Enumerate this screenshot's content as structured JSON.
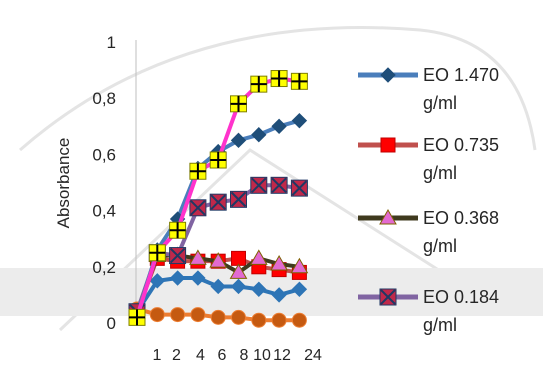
{
  "chart_data": {
    "type": "line",
    "title": "",
    "xlabel": "",
    "ylabel": "Absorbance",
    "ylim": [
      0,
      1
    ],
    "yticks": [
      "0",
      "0,2",
      "0,4",
      "0,6",
      "0,8",
      "1"
    ],
    "categories": [
      "",
      "1",
      "2",
      "4",
      "6",
      "8",
      "10",
      "12",
      "24"
    ],
    "x_tick_labels": [
      "1",
      "2",
      "4",
      "6",
      "8",
      "10",
      "12",
      "24"
    ],
    "grid": false,
    "legend_position": "right",
    "series": [
      {
        "legend_line1": "EO 1.470",
        "legend_line2": "g/ml",
        "color": "#4a7ebb",
        "marker": "diamond",
        "marker_color": "#1f4e79",
        "values": [
          0.02,
          0.26,
          0.37,
          0.55,
          0.61,
          0.65,
          0.67,
          0.7,
          0.72
        ]
      },
      {
        "legend_line1": "EO 0.735",
        "legend_line2": "g/ml",
        "color": "#c0504d",
        "marker": "square",
        "marker_color": "#ff0000",
        "values": [
          0.04,
          0.23,
          0.22,
          0.22,
          0.22,
          0.23,
          0.2,
          0.19,
          0.18
        ]
      },
      {
        "legend_line1": "EO 0.368",
        "legend_line2": "g/ml",
        "color": "#3f3a1e",
        "marker": "triangle",
        "marker_color": "#e26ad0",
        "values": [
          0.04,
          0.24,
          0.24,
          0.23,
          0.22,
          0.18,
          0.23,
          0.21,
          0.2
        ]
      },
      {
        "legend_line1": "EO 0.184",
        "legend_line2": "g/ml",
        "color": "#8064a2",
        "marker": "xbox",
        "marker_color": "#c0284a",
        "values": [
          0.04,
          0.25,
          0.24,
          0.41,
          0.43,
          0.44,
          0.49,
          0.49,
          0.48
        ]
      },
      {
        "legend_line1": "",
        "legend_line2": "",
        "color": "#ff33cc",
        "marker": "plus",
        "marker_color": "#ffff00",
        "values": [
          0.02,
          0.25,
          0.33,
          0.54,
          0.58,
          0.78,
          0.85,
          0.87,
          0.86
        ]
      },
      {
        "legend_line1": "",
        "legend_line2": "",
        "color": "#2e75b6",
        "marker": "diamond",
        "marker_color": "#2e75b6",
        "values": [
          0.04,
          0.15,
          0.16,
          0.16,
          0.13,
          0.13,
          0.12,
          0.1,
          0.12
        ]
      },
      {
        "legend_line1": "",
        "legend_line2": "",
        "color": "#ed7d31",
        "marker": "circle",
        "marker_color": "#c55a11",
        "values": [
          0.05,
          0.03,
          0.03,
          0.03,
          0.02,
          0.02,
          0.01,
          0.01,
          0.01
        ]
      }
    ]
  }
}
